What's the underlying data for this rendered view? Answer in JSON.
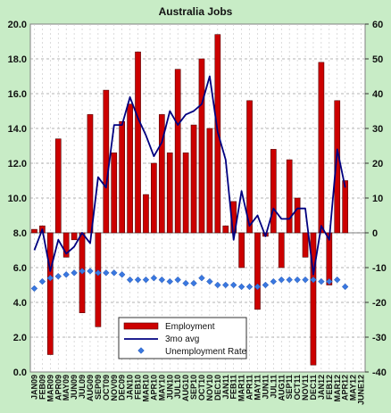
{
  "chart_data": {
    "type": "bar",
    "title": "Australia Jobs",
    "xlabel": "",
    "ylabel": "",
    "ylim_left": [
      0,
      20
    ],
    "ylim_right": [
      -40,
      60
    ],
    "left_ticks": [
      "0.0",
      "2.0",
      "4.0",
      "6.0",
      "8.0",
      "10.0",
      "12.0",
      "14.0",
      "16.0",
      "18.0",
      "20.0"
    ],
    "right_ticks": [
      "-40",
      "-30",
      "-20",
      "-10",
      "0",
      "10",
      "20",
      "30",
      "40",
      "50",
      "60"
    ],
    "grid": true,
    "legend_position": "bottom-center",
    "categories": [
      "JAN09",
      "FEB09",
      "MAR09",
      "APR09",
      "MAY09",
      "JUN09",
      "JUL09",
      "AUG09",
      "SEP09",
      "OCT09",
      "NOV09",
      "DEC09",
      "JAN10",
      "FEB10",
      "MAR10",
      "APR10",
      "MAY10",
      "JUN10",
      "JUL10",
      "AUG10",
      "SEP10",
      "OCT10",
      "NOV10",
      "DEC10",
      "JAN11",
      "FEB11",
      "MAR11",
      "APR11",
      "MAY11",
      "JUN11",
      "JUL11",
      "AUG11",
      "SEP11",
      "OCT11",
      "NOV11",
      "DEC11",
      "JAN12",
      "FEB12",
      "MAR12",
      "APR12",
      "MAY12",
      "JUNE12"
    ],
    "series": [
      {
        "name": "Employment",
        "kind": "bar",
        "axis": "right",
        "color": "#cc0000",
        "values": [
          1,
          2,
          -35,
          27,
          -7,
          -2,
          -23,
          34,
          -27,
          41,
          23,
          32,
          37,
          52,
          11,
          20,
          34,
          23,
          47,
          23,
          31,
          50,
          30,
          57,
          2,
          9,
          -10,
          38,
          -22,
          -1,
          24,
          -10,
          21,
          10,
          -7,
          -38,
          49,
          -15,
          38,
          15,
          null,
          null
        ]
      },
      {
        "name": "3mo avg",
        "kind": "line",
        "axis": "right",
        "color": "#000080",
        "values": [
          -5,
          1,
          -11,
          -2,
          -6,
          -4,
          0,
          -3,
          16,
          13,
          31,
          31,
          39,
          33,
          28,
          22,
          26,
          35,
          31,
          34,
          35,
          37,
          45,
          29,
          21,
          -2,
          12,
          2,
          5,
          -1,
          7,
          4,
          4,
          7,
          7,
          -12,
          2,
          -2,
          24,
          13,
          null,
          null
        ]
      },
      {
        "name": "Unemployment Rate",
        "kind": "scatter",
        "axis": "left",
        "color": "#3a78e0",
        "marker": "diamond",
        "values": [
          4.8,
          5.2,
          5.4,
          5.5,
          5.6,
          5.7,
          5.8,
          5.8,
          5.7,
          5.7,
          5.7,
          5.6,
          5.3,
          5.3,
          5.3,
          5.4,
          5.3,
          5.2,
          5.3,
          5.1,
          5.1,
          5.4,
          5.2,
          5.0,
          5.0,
          5.0,
          4.9,
          4.9,
          4.9,
          5.0,
          5.2,
          5.3,
          5.3,
          5.3,
          5.3,
          5.3,
          5.2,
          5.2,
          5.3,
          4.9,
          null,
          null
        ]
      }
    ]
  }
}
